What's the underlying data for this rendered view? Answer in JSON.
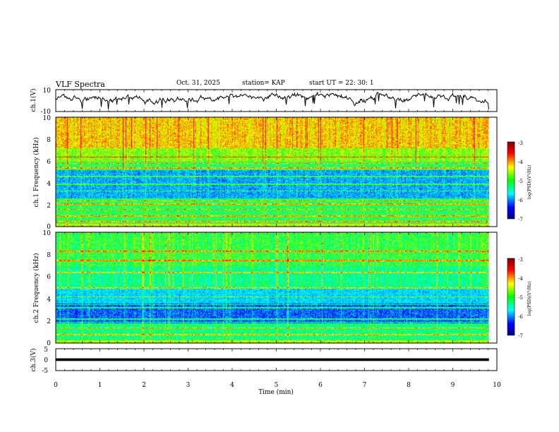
{
  "header": {
    "title": "VLF Spectra",
    "date": "Oct. 31, 2025",
    "station": "station= KAP",
    "start": "start  UT =  22: 30: 1"
  },
  "colorbar": {
    "label": "log(PSD)(V²/Hz)",
    "ticks": [
      "-3",
      "-4",
      "-5",
      "-6",
      "-7"
    ],
    "colors": [
      "#800000",
      "#ff0000",
      "#ffff00",
      "#00ff00",
      "#00ffff",
      "#0000ff",
      "#000080"
    ]
  },
  "chart_data": [
    {
      "type": "line",
      "name": "ch.1 waveform",
      "ylabel": "ch.1(V)",
      "ylim": [
        -10,
        10
      ],
      "ytick_labels": [
        "10",
        "-10"
      ],
      "xlim": [
        0,
        10
      ],
      "duration_min": 9.82,
      "baseline_v": 2,
      "amplitude_v": 4
    },
    {
      "type": "heatmap",
      "name": "ch.1 spectrogram",
      "ylabel": "ch.1 Frequency (kHz)",
      "ylim": [
        0,
        10
      ],
      "ytick_labels": [
        "0",
        "2",
        "4",
        "6",
        "8",
        "10"
      ],
      "xlim": [
        0,
        10
      ],
      "duration_min": 9.82,
      "bands": [
        {
          "f0": 0.0,
          "f1": 0.3,
          "level": 4.0
        },
        {
          "f0": 0.3,
          "f1": 2.6,
          "level": 3.0
        },
        {
          "f0": 2.6,
          "f1": 5.2,
          "level": 1.6
        },
        {
          "f0": 5.2,
          "f1": 6.0,
          "level": 3.0
        },
        {
          "f0": 6.0,
          "f1": 7.2,
          "level": 3.6
        },
        {
          "f0": 7.2,
          "f1": 10.0,
          "level": 4.4
        }
      ],
      "lines_khz": [
        0.5,
        1.0,
        1.6,
        2.1,
        2.4,
        3.3,
        3.9,
        4.6,
        5.4,
        5.8,
        6.4
      ]
    },
    {
      "type": "heatmap",
      "name": "ch.2 spectrogram",
      "ylabel": "ch.2 Frequency (kHz)",
      "ylim": [
        0,
        10
      ],
      "ytick_labels": [
        "0",
        "2",
        "4",
        "6",
        "8",
        "10"
      ],
      "xlim": [
        0,
        10
      ],
      "duration_min": 9.82,
      "bands": [
        {
          "f0": 0.0,
          "f1": 0.3,
          "level": 3.8
        },
        {
          "f0": 0.3,
          "f1": 1.8,
          "level": 2.8
        },
        {
          "f0": 1.8,
          "f1": 3.6,
          "level": 1.2
        },
        {
          "f0": 3.6,
          "f1": 5.0,
          "level": 1.9
        },
        {
          "f0": 5.0,
          "f1": 7.0,
          "level": 2.7
        },
        {
          "f0": 7.0,
          "f1": 10.0,
          "level": 3.1
        }
      ],
      "lines_khz": [
        0.8,
        1.4,
        1.9,
        2.2,
        3.2,
        3.5,
        4.2,
        5.0,
        6.4,
        7.5,
        8.3
      ]
    },
    {
      "type": "line",
      "name": "ch.3 waveform",
      "ylabel": "ch.3(V)",
      "ylim": [
        -5,
        5
      ],
      "ytick_labels": [
        "5",
        "0",
        "-5"
      ],
      "xlim": [
        0,
        10
      ],
      "duration_min": 9.82,
      "baseline_v": 0,
      "amplitude_v": 0.6,
      "xlabel": "Time  (min)",
      "xtick_labels": [
        "0",
        "1",
        "2",
        "3",
        "4",
        "5",
        "6",
        "7",
        "8",
        "9",
        "10"
      ]
    }
  ]
}
